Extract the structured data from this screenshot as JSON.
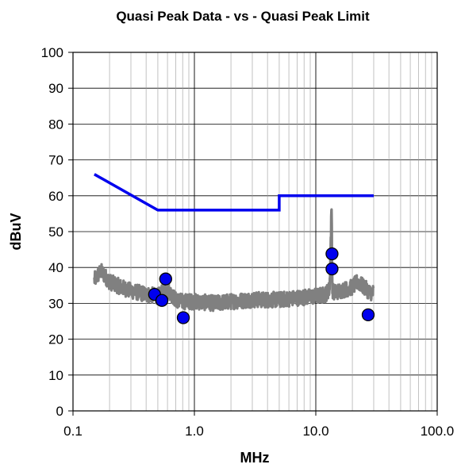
{
  "chart_data": {
    "type": "line",
    "title": "Quasi Peak Data - vs - Quasi Peak Limit",
    "xlabel": "MHz",
    "ylabel": "dBuV",
    "x_scale": "log",
    "xlim": [
      0.1,
      100.0
    ],
    "ylim": [
      0,
      100
    ],
    "x_ticks": [
      0.1,
      1.0,
      10.0,
      100.0
    ],
    "x_tick_labels": [
      "0.1",
      "1.0",
      "10.0",
      "100.0"
    ],
    "y_ticks": [
      0,
      10,
      20,
      30,
      40,
      50,
      60,
      70,
      80,
      90,
      100
    ],
    "y_tick_labels": [
      "0",
      "10",
      "20",
      "30",
      "40",
      "50",
      "60",
      "70",
      "80",
      "90",
      "100"
    ],
    "grid": true,
    "legend": "none",
    "series": [
      {
        "kind": "line",
        "color": "#0000ee",
        "x": [
          0.15,
          0.5,
          0.5,
          5.0,
          5.0,
          30.0
        ],
        "y": [
          66,
          56,
          56,
          56,
          60,
          60
        ]
      },
      {
        "kind": "noise",
        "color": "#808080",
        "x": [
          0.15,
          0.17,
          0.2,
          0.25,
          0.3,
          0.4,
          0.5,
          0.6,
          0.7,
          0.8,
          1.0,
          1.5,
          2.0,
          3.0,
          5.0,
          7.0,
          10.0,
          12.0,
          13.0,
          13.5,
          13.6,
          13.7,
          14.0,
          16.0,
          20.0,
          22.0,
          25.0,
          28.0,
          30.0
        ],
        "y": [
          36.5,
          39,
          36,
          34.5,
          33.5,
          32.5,
          32,
          34,
          31,
          30.5,
          30.5,
          30,
          30.5,
          31,
          31,
          31.5,
          32,
          32.5,
          34,
          57,
          45,
          34,
          33,
          33.5,
          34.5,
          36,
          34.5,
          33,
          33
        ],
        "band": 2.2
      },
      {
        "kind": "scatter",
        "color": "#0000ee",
        "x": [
          0.47,
          0.54,
          0.58,
          0.81,
          13.6,
          13.6,
          27.0
        ],
        "y": [
          32.5,
          30.8,
          36.8,
          26.0,
          43.8,
          39.6,
          26.8
        ]
      }
    ]
  }
}
